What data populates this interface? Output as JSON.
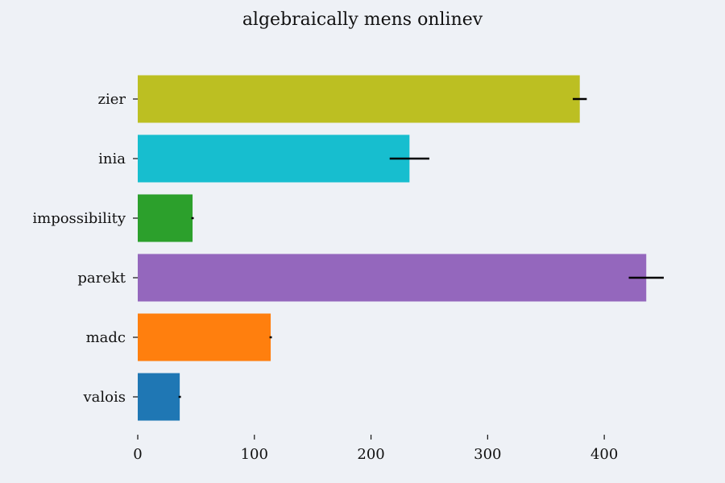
{
  "chart_data": {
    "type": "bar",
    "orientation": "horizontal",
    "title": "algebraically mens onlinev",
    "xlabel": "",
    "ylabel": "",
    "categories": [
      "valois",
      "madc",
      "parekt",
      "impossibility",
      "inia",
      "zier"
    ],
    "values": [
      36,
      114,
      436,
      47,
      233,
      379
    ],
    "errors": [
      1,
      1,
      15,
      1,
      17,
      6
    ],
    "colors": [
      "#1f77b4",
      "#ff7f0e",
      "#9467bd",
      "#2ca02c",
      "#17becf",
      "#bcbf22"
    ],
    "xlim": [
      0,
      460
    ],
    "xticks": [
      0,
      100,
      200,
      300,
      400
    ],
    "grid": false,
    "background": "#eef1f6"
  }
}
